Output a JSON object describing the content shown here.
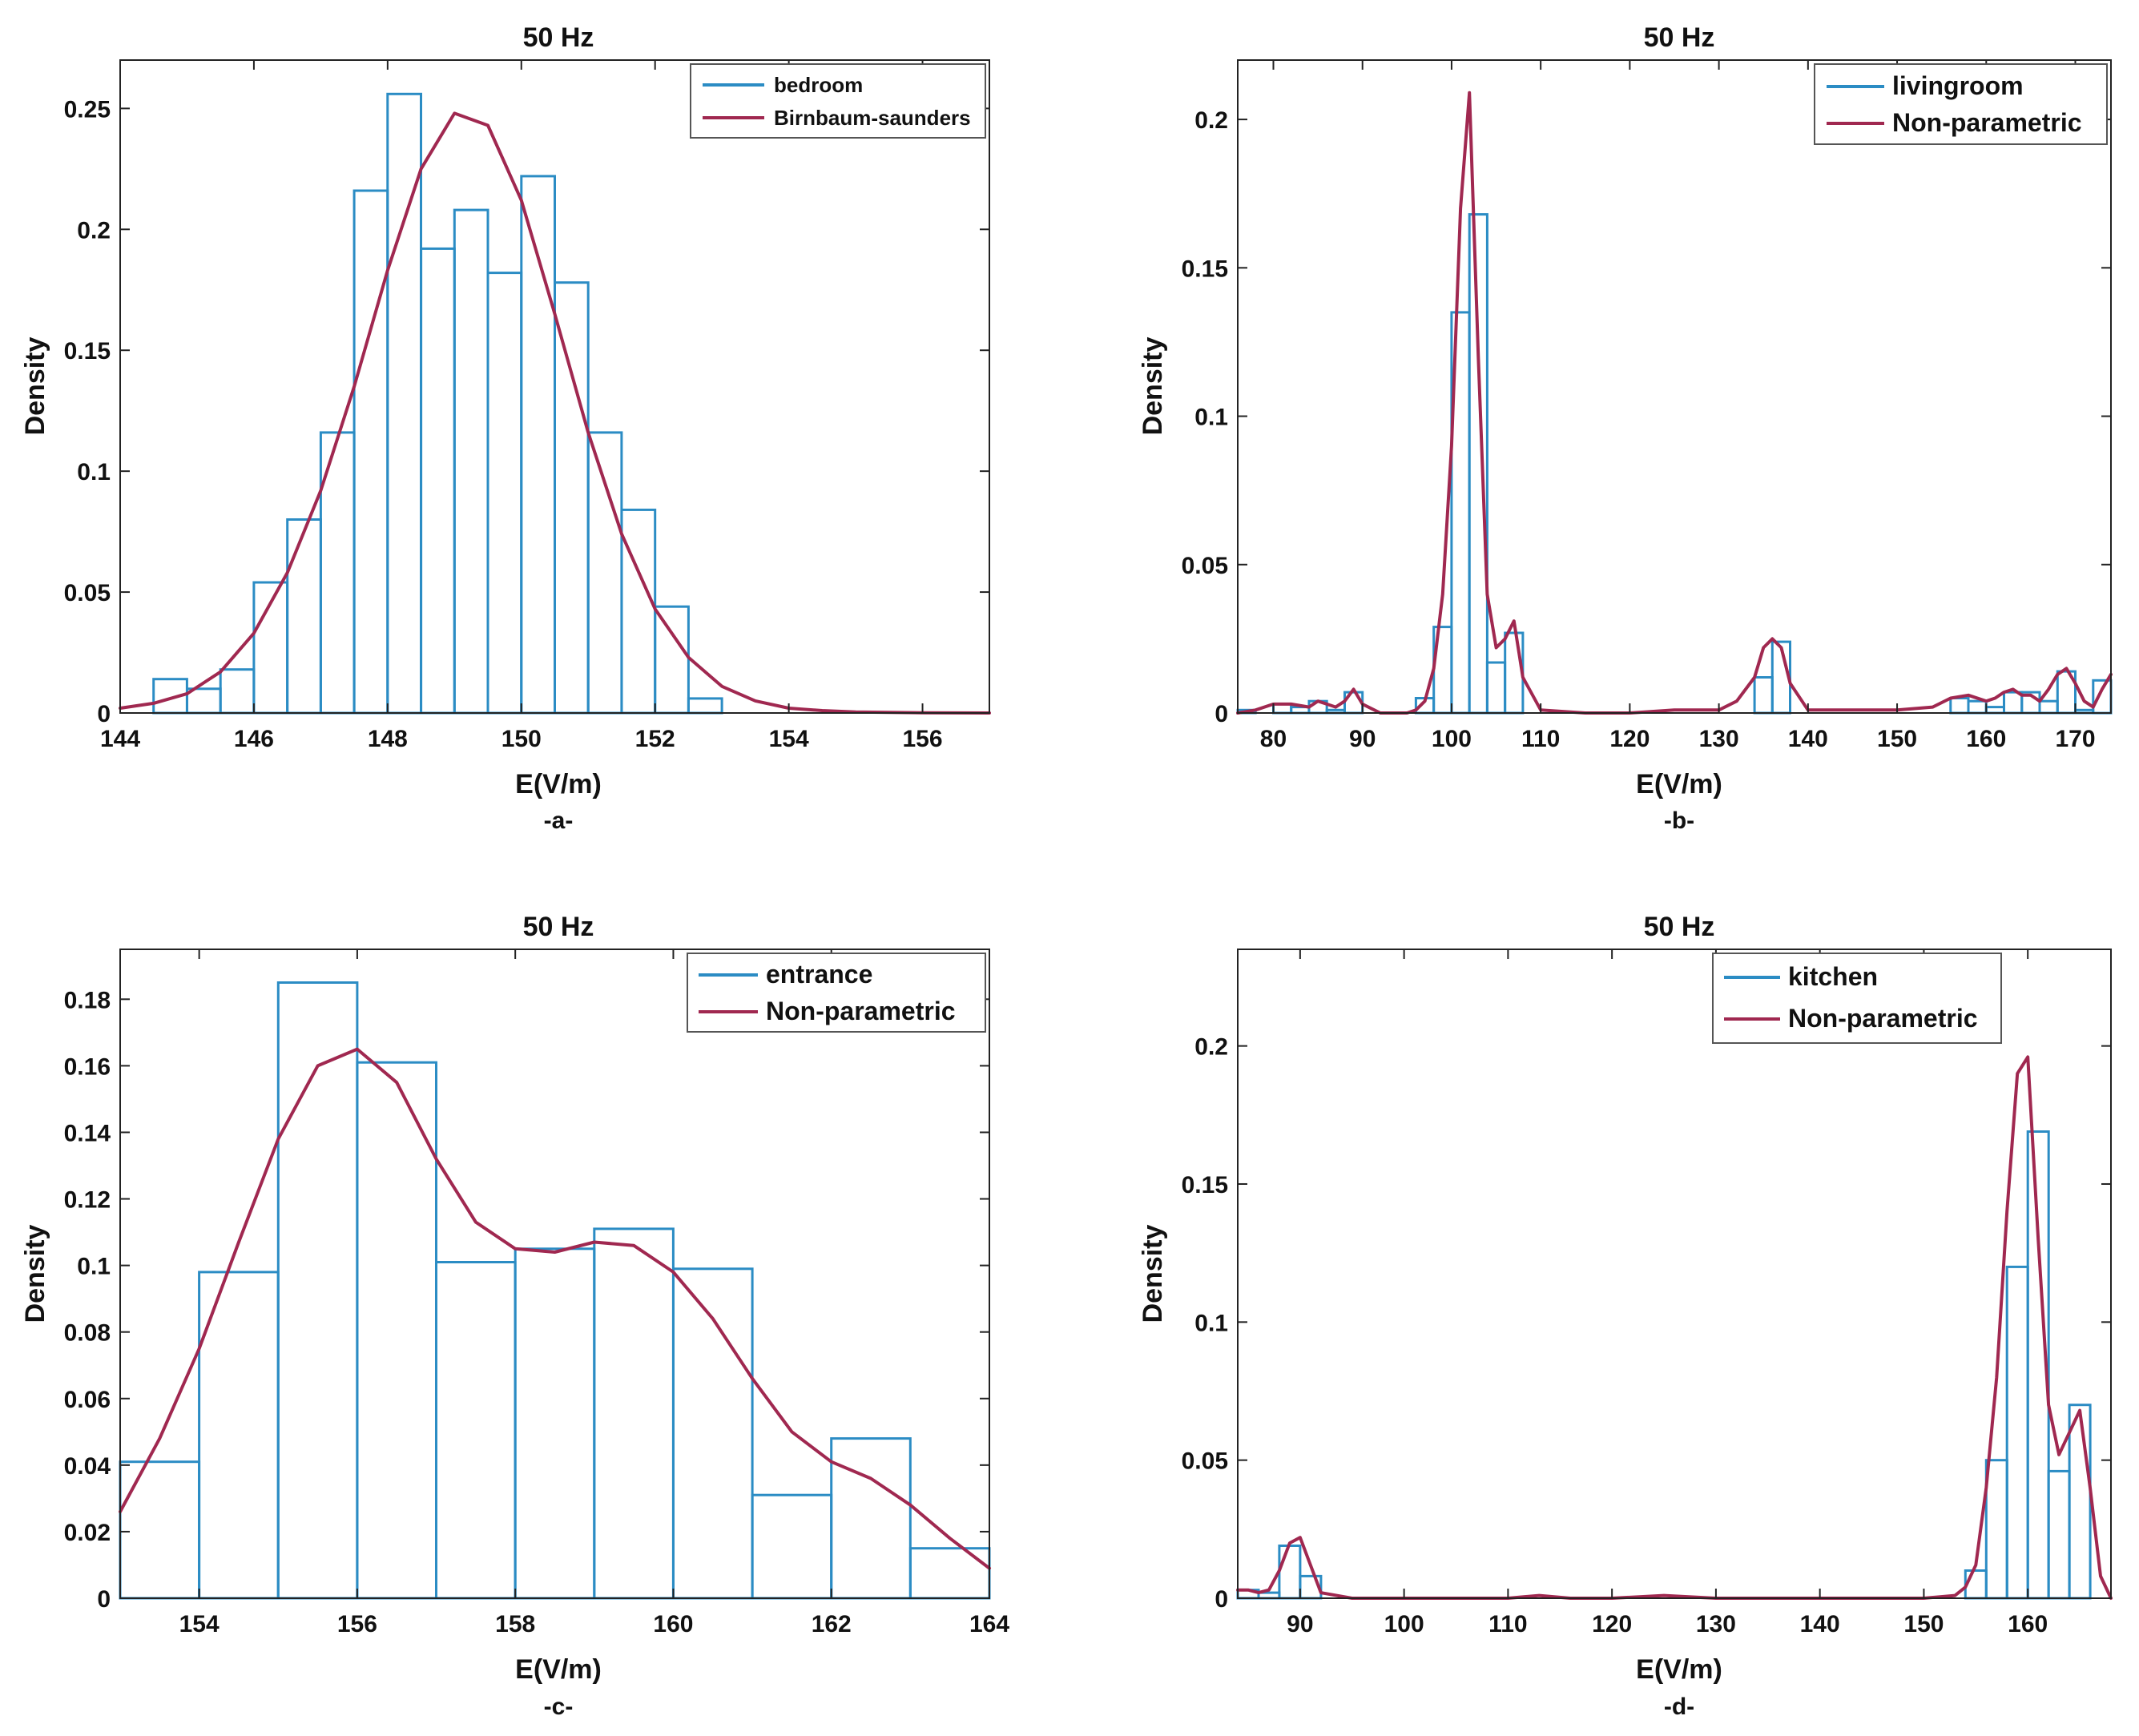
{
  "chart_data": [
    {
      "type": "bar",
      "panel": "-a-",
      "title": "50 Hz",
      "xlabel": "E(V/m)",
      "ylabel": "Density",
      "xlim": [
        144,
        157
      ],
      "ylim": [
        0,
        0.27
      ],
      "xticks": [
        144,
        146,
        148,
        150,
        152,
        154,
        156
      ],
      "yticks": [
        0,
        0.05,
        0.1,
        0.15,
        0.2,
        0.25
      ],
      "xtick_labels": [
        "144",
        "146",
        "148",
        "150",
        "152",
        "154",
        "156"
      ],
      "ytick_labels": [
        "0",
        "0.05",
        "0.1",
        "0.15",
        "0.2",
        "0.25"
      ],
      "legend_position": "top-right",
      "legend": [
        "bedroom",
        "Birnbaum-saunders"
      ],
      "histogram": {
        "name": "bedroom",
        "color": "#2b8cc4",
        "bins": [
          [
            144.5,
            145.0,
            0.014
          ],
          [
            145.0,
            145.5,
            0.01
          ],
          [
            145.5,
            146.0,
            0.018
          ],
          [
            146.0,
            146.5,
            0.054
          ],
          [
            146.5,
            147.0,
            0.08
          ],
          [
            147.0,
            147.5,
            0.116
          ],
          [
            147.5,
            148.0,
            0.216
          ],
          [
            148.0,
            148.5,
            0.256
          ],
          [
            148.5,
            149.0,
            0.192
          ],
          [
            149.0,
            149.5,
            0.208
          ],
          [
            149.5,
            150.0,
            0.182
          ],
          [
            150.0,
            150.5,
            0.222
          ],
          [
            150.5,
            151.0,
            0.178
          ],
          [
            151.0,
            151.5,
            0.116
          ],
          [
            151.5,
            152.0,
            0.084
          ],
          [
            152.0,
            152.5,
            0.044
          ],
          [
            152.5,
            153.0,
            0.006
          ]
        ]
      },
      "fit": {
        "name": "Birnbaum-saunders",
        "color": "#a02850",
        "x": [
          144,
          144.5,
          145,
          145.5,
          146,
          146.5,
          147,
          147.5,
          148,
          148.5,
          149,
          149.5,
          150,
          150.5,
          151,
          151.5,
          152,
          152.5,
          153,
          153.5,
          154,
          154.5,
          155,
          156,
          157
        ],
        "y": [
          0.002,
          0.004,
          0.008,
          0.017,
          0.033,
          0.058,
          0.092,
          0.135,
          0.183,
          0.225,
          0.248,
          0.243,
          0.212,
          0.165,
          0.116,
          0.074,
          0.043,
          0.023,
          0.011,
          0.005,
          0.002,
          0.001,
          0.0004,
          0.0001,
          0
        ]
      }
    },
    {
      "type": "bar",
      "panel": "-b-",
      "title": "50 Hz",
      "xlabel": "E(V/m)",
      "ylabel": "Density",
      "xlim": [
        76,
        174
      ],
      "ylim": [
        0,
        0.22
      ],
      "xticks": [
        80,
        90,
        100,
        110,
        120,
        130,
        140,
        150,
        160,
        170
      ],
      "yticks": [
        0,
        0.05,
        0.1,
        0.15,
        0.2
      ],
      "xtick_labels": [
        "80",
        "90",
        "100",
        "110",
        "120",
        "130",
        "140",
        "150",
        "160",
        "170"
      ],
      "ytick_labels": [
        "0",
        "0.05",
        "0.1",
        "0.15",
        "0.2"
      ],
      "legend_position": "top-right",
      "legend": [
        "livingroom",
        "Non-parametric"
      ],
      "histogram": {
        "name": "livingroom",
        "color": "#2b8cc4",
        "bins": [
          [
            76,
            78,
            0.001
          ],
          [
            78,
            80,
            0.0
          ],
          [
            80,
            82,
            0.003
          ],
          [
            82,
            84,
            0.002
          ],
          [
            84,
            86,
            0.004
          ],
          [
            86,
            88,
            0.001
          ],
          [
            88,
            90,
            0.007
          ],
          [
            90,
            92,
            0.0
          ],
          [
            96,
            98,
            0.005
          ],
          [
            98,
            100,
            0.029
          ],
          [
            100,
            102,
            0.135
          ],
          [
            102,
            104,
            0.168
          ],
          [
            104,
            106,
            0.017
          ],
          [
            106,
            108,
            0.027
          ],
          [
            134,
            136,
            0.012
          ],
          [
            136,
            138,
            0.024
          ],
          [
            156,
            158,
            0.005
          ],
          [
            158,
            160,
            0.004
          ],
          [
            160,
            162,
            0.002
          ],
          [
            162,
            164,
            0.007
          ],
          [
            164,
            166,
            0.007
          ],
          [
            166,
            168,
            0.004
          ],
          [
            168,
            170,
            0.014
          ],
          [
            170,
            172,
            0.001
          ],
          [
            172,
            174,
            0.011
          ]
        ]
      },
      "fit": {
        "name": "Non-parametric",
        "color": "#a02850",
        "x": [
          76,
          78,
          80,
          82,
          84,
          85,
          86,
          87,
          88,
          89,
          90,
          92,
          95,
          96,
          97,
          98,
          99,
          100,
          101,
          102,
          103,
          104,
          105,
          106,
          107,
          108,
          110,
          115,
          120,
          125,
          130,
          132,
          134,
          135,
          136,
          137,
          138,
          140,
          145,
          150,
          154,
          156,
          158,
          160,
          161,
          162,
          163,
          164,
          165,
          166,
          167,
          168,
          169,
          170,
          171,
          172,
          173,
          174
        ],
        "y": [
          0.0,
          0.001,
          0.003,
          0.003,
          0.002,
          0.004,
          0.003,
          0.002,
          0.004,
          0.008,
          0.003,
          0.0,
          0.0,
          0.001,
          0.004,
          0.015,
          0.04,
          0.09,
          0.17,
          0.209,
          0.12,
          0.04,
          0.022,
          0.025,
          0.031,
          0.012,
          0.001,
          0.0,
          0.0,
          0.001,
          0.001,
          0.004,
          0.012,
          0.022,
          0.025,
          0.022,
          0.01,
          0.001,
          0.001,
          0.001,
          0.002,
          0.005,
          0.006,
          0.004,
          0.005,
          0.007,
          0.008,
          0.006,
          0.006,
          0.004,
          0.008,
          0.013,
          0.015,
          0.01,
          0.004,
          0.002,
          0.008,
          0.013
        ]
      }
    },
    {
      "type": "bar",
      "panel": "-c-",
      "title": "50 Hz",
      "xlabel": "E(V/m)",
      "ylabel": "Density",
      "xlim": [
        153,
        164
      ],
      "ylim": [
        0,
        0.195
      ],
      "xticks": [
        154,
        156,
        158,
        160,
        162,
        164
      ],
      "yticks": [
        0,
        0.02,
        0.04,
        0.06,
        0.08,
        0.1,
        0.12,
        0.14,
        0.16,
        0.18
      ],
      "xtick_labels": [
        "154",
        "156",
        "158",
        "160",
        "162",
        "164"
      ],
      "ytick_labels": [
        "0",
        "0.02",
        "0.04",
        "0.06",
        "0.08",
        "0.1",
        "0.12",
        "0.14",
        "0.16",
        "0.18"
      ],
      "legend_position": "top-right",
      "legend": [
        "entrance",
        "Non-parametric"
      ],
      "histogram": {
        "name": "entrance",
        "color": "#2b8cc4",
        "bins": [
          [
            153,
            154,
            0.041
          ],
          [
            154,
            155,
            0.098
          ],
          [
            155,
            156,
            0.185
          ],
          [
            156,
            157,
            0.161
          ],
          [
            157,
            158,
            0.101
          ],
          [
            158,
            159,
            0.105
          ],
          [
            159,
            160,
            0.111
          ],
          [
            160,
            161,
            0.099
          ],
          [
            161,
            162,
            0.031
          ],
          [
            162,
            163,
            0.048
          ],
          [
            163,
            164,
            0.015
          ]
        ]
      },
      "fit": {
        "name": "Non-parametric",
        "color": "#a02850",
        "x": [
          153,
          153.5,
          154,
          154.5,
          155,
          155.5,
          156,
          156.5,
          157,
          157.5,
          158,
          158.5,
          159,
          159.5,
          160,
          160.5,
          161,
          161.5,
          162,
          162.5,
          163,
          163.5,
          164
        ],
        "y": [
          0.026,
          0.048,
          0.075,
          0.107,
          0.138,
          0.16,
          0.165,
          0.155,
          0.132,
          0.113,
          0.105,
          0.104,
          0.107,
          0.106,
          0.098,
          0.084,
          0.066,
          0.05,
          0.041,
          0.036,
          0.028,
          0.018,
          0.009
        ]
      }
    },
    {
      "type": "bar",
      "panel": "-d-",
      "title": "50 Hz",
      "xlabel": "E(V/m)",
      "ylabel": "Density",
      "xlim": [
        84,
        168
      ],
      "ylim": [
        0,
        0.235
      ],
      "xticks": [
        90,
        100,
        110,
        120,
        130,
        140,
        150,
        160
      ],
      "yticks": [
        0,
        0.05,
        0.1,
        0.15,
        0.2
      ],
      "xtick_labels": [
        "90",
        "100",
        "110",
        "120",
        "130",
        "140",
        "150",
        "160"
      ],
      "ytick_labels": [
        "0",
        "0.05",
        "0.1",
        "0.15",
        "0.2"
      ],
      "legend_position": "top-left",
      "legend": [
        "kitchen",
        "Non-parametric"
      ],
      "histogram": {
        "name": "kitchen",
        "color": "#2b8cc4",
        "bins": [
          [
            84,
            86,
            0.003
          ],
          [
            86,
            88,
            0.002
          ],
          [
            88,
            90,
            0.019
          ],
          [
            90,
            92,
            0.008
          ],
          [
            154,
            156,
            0.01
          ],
          [
            156,
            158,
            0.05
          ],
          [
            158,
            160,
            0.12
          ],
          [
            160,
            162,
            0.169
          ],
          [
            162,
            164,
            0.046
          ],
          [
            164,
            166,
            0.07
          ],
          [
            166,
            168,
            0.0
          ]
        ]
      },
      "fit": {
        "name": "Non-parametric",
        "color": "#a02850",
        "x": [
          84,
          85,
          86,
          87,
          88,
          89,
          90,
          91,
          92,
          95,
          100,
          110,
          113,
          116,
          120,
          125,
          130,
          140,
          150,
          153,
          154,
          155,
          156,
          157,
          158,
          159,
          160,
          161,
          162,
          163,
          164,
          165,
          166,
          167,
          168
        ],
        "y": [
          0.003,
          0.003,
          0.002,
          0.003,
          0.01,
          0.02,
          0.022,
          0.012,
          0.002,
          0.0,
          0.0,
          0.0,
          0.001,
          0.0,
          0.0,
          0.001,
          0.0,
          0.0,
          0.0,
          0.001,
          0.004,
          0.012,
          0.04,
          0.08,
          0.14,
          0.19,
          0.196,
          0.13,
          0.07,
          0.052,
          0.06,
          0.068,
          0.04,
          0.008,
          0.0
        ]
      }
    }
  ]
}
